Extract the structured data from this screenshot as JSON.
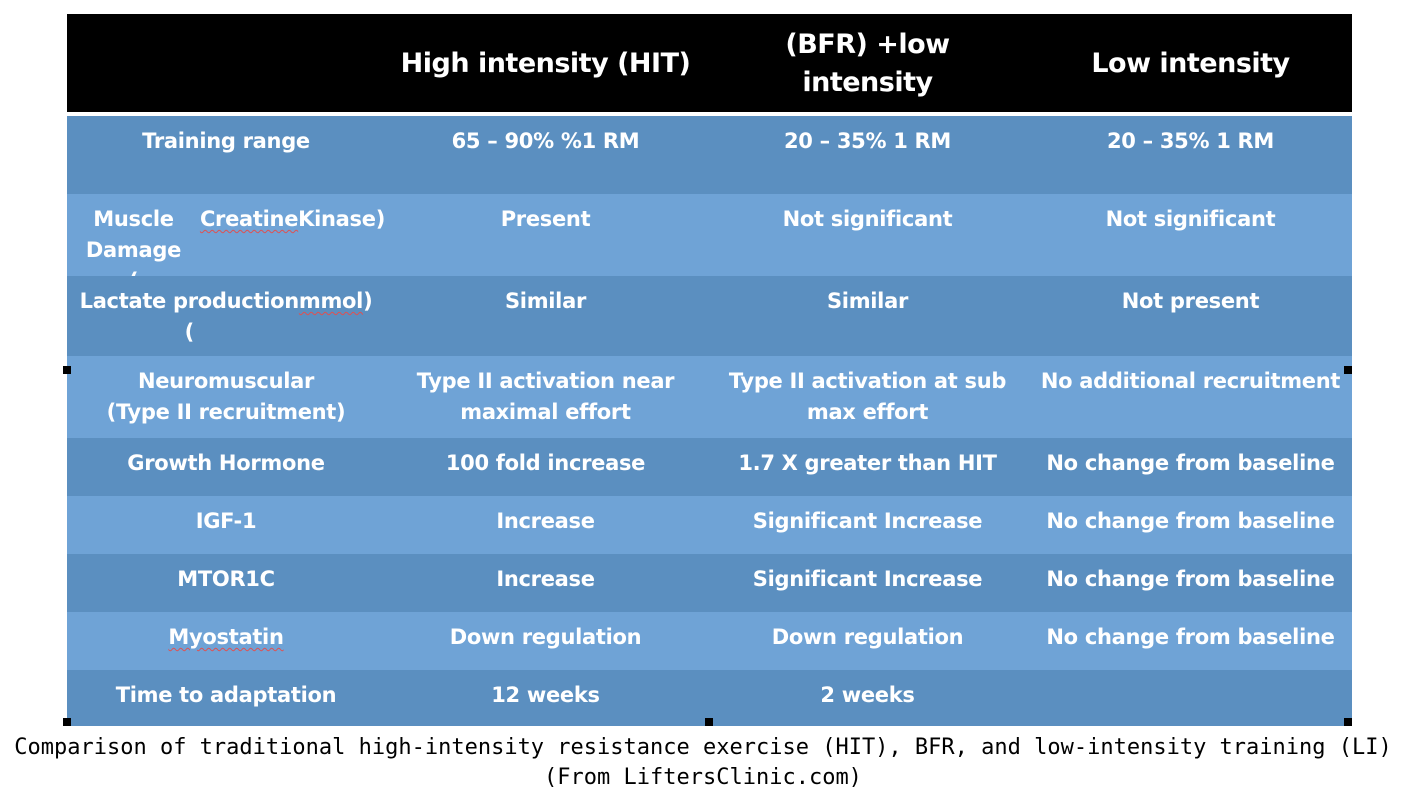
{
  "colors": {
    "header_bg": "#000000",
    "row_dark": "#5b8fc0",
    "row_light": "#6fa3d6",
    "text": "#ffffff"
  },
  "table": {
    "header": [
      "",
      "High intensity (HIT)",
      "(BFR) +low\nintensity",
      "Low intensity"
    ],
    "rows": [
      [
        "Training range",
        "65 – 90% %1 RM",
        "20 – 35% 1 RM",
        "20 – 35% 1 RM"
      ],
      [
        "Muscle Damage\n(Creatine Kinase)",
        "Present",
        "Not significant",
        "Not significant"
      ],
      [
        "Lactate production\n(mmol)",
        "Similar",
        "Similar",
        "Not present"
      ],
      [
        "Neuromuscular\n(Type II recruitment)",
        "Type II activation near\nmaximal effort",
        "Type II activation at sub\nmax effort",
        "No additional recruitment"
      ],
      [
        "Growth Hormone",
        "100 fold increase",
        "1.7 X greater than HIT",
        "No change from baseline"
      ],
      [
        "IGF-1",
        "Increase",
        "Significant Increase",
        "No change from baseline"
      ],
      [
        "MTOR1C",
        "Increase",
        "Significant Increase",
        "No change from baseline"
      ],
      [
        "Myostatin",
        "Down regulation",
        "Down regulation",
        "No change from baseline"
      ],
      [
        "Time to adaptation",
        "12 weeks",
        "2 weeks",
        ""
      ]
    ]
  },
  "caption": {
    "line1": "Comparison of traditional high-intensity resistance exercise (HIT), BFR, and low-intensity training (LI)",
    "line2": "(From LiftersClinic.com)"
  }
}
